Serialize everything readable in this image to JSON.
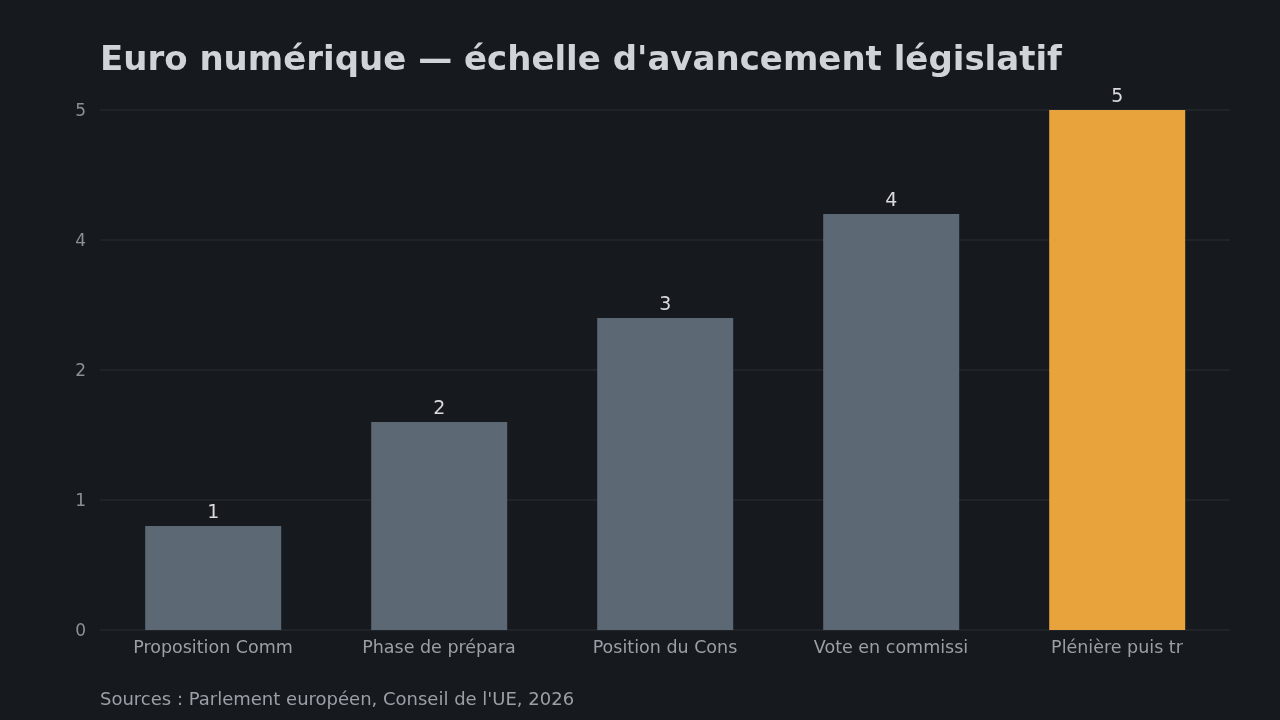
{
  "chart_data": {
    "type": "bar",
    "title": "Euro numérique — échelle d'avancement législatif",
    "categories": [
      "Proposition Comm",
      "Phase de prépara",
      "Position du Cons",
      "Vote en commissi",
      "Plénière puis tr"
    ],
    "values": [
      1,
      2,
      3,
      4,
      5
    ],
    "colors": [
      "#5c6873",
      "#5c6873",
      "#5c6873",
      "#5c6873",
      "#e8a33d"
    ],
    "ylim": [
      0,
      5
    ],
    "yticks": [
      0,
      {
        "value": 1.25,
        "label": "1"
      },
      {
        "value": 2.5,
        "label": "2"
      },
      {
        "value": 3.75,
        "label": "4"
      },
      5
    ],
    "grid": "y",
    "data_labels": true,
    "annotations": [
      "Sources : Parlement européen, Conseil de l'UE, 2026"
    ]
  }
}
